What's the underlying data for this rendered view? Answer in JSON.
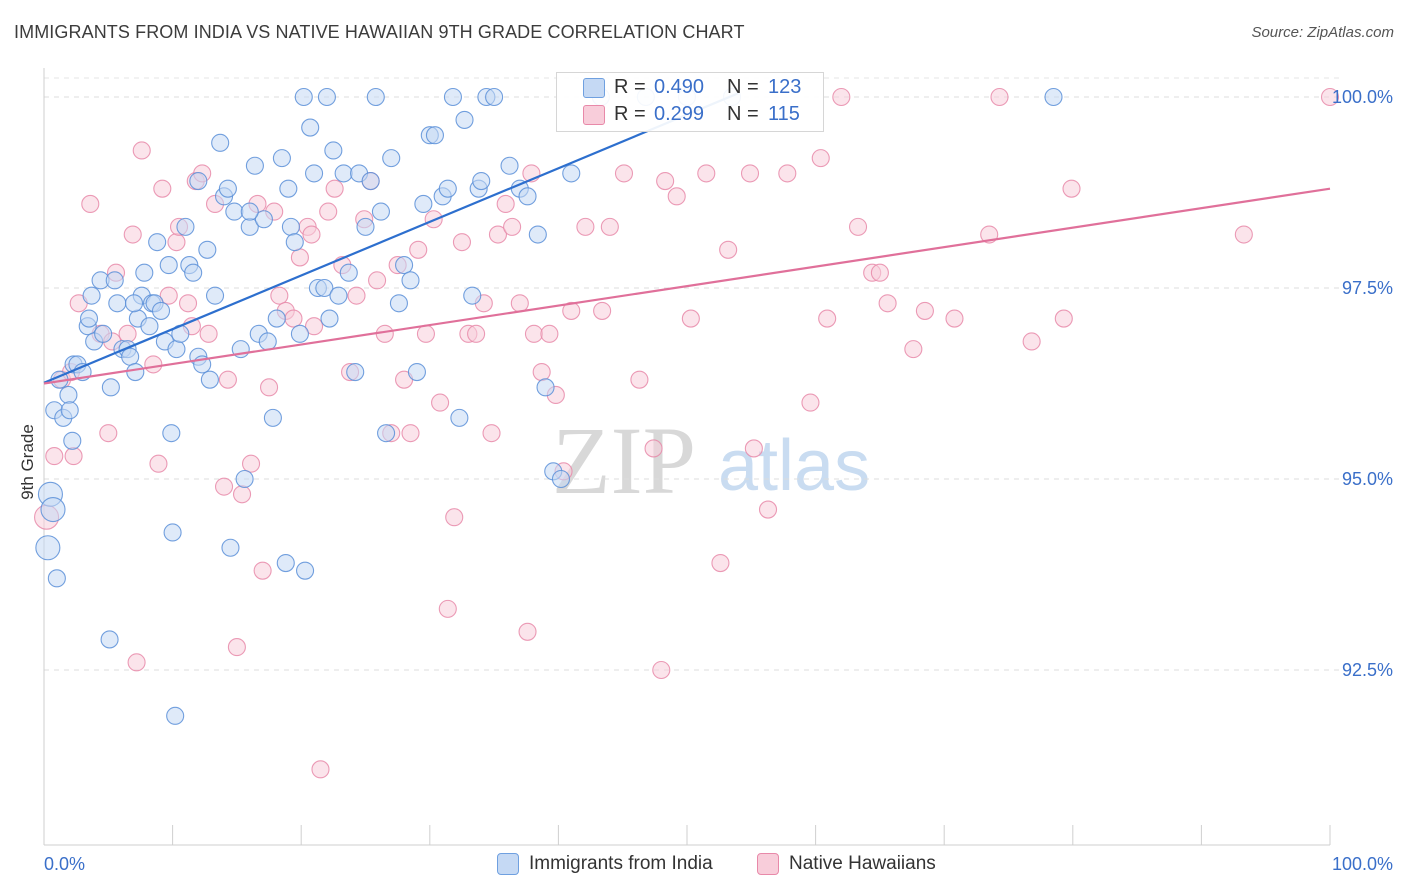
{
  "header": {
    "title": "IMMIGRANTS FROM INDIA VS NATIVE HAWAIIAN 9TH GRADE CORRELATION CHART",
    "source": "Source: ZipAtlas.com"
  },
  "watermark": {
    "zip": "ZIP",
    "atlas": "atlas"
  },
  "legend_top": {
    "rows": [
      {
        "r_label": "R =",
        "r_value": "0.490",
        "n_label": "N =",
        "n_value": "123",
        "color": "#6fa0e0",
        "fill": "#c5d9f4"
      },
      {
        "r_label": "R =",
        "r_value": "0.299",
        "n_label": "N =",
        "n_value": "115",
        "color": "#e889a9",
        "fill": "#f8cdda"
      }
    ]
  },
  "legend_bottom": {
    "items": [
      {
        "label": "Immigrants from India",
        "color": "#6fa0e0",
        "fill": "#c5d9f4"
      },
      {
        "label": "Native Hawaiians",
        "color": "#e889a9",
        "fill": "#f8cdda"
      }
    ]
  },
  "chart_data": {
    "type": "scatter",
    "title": "IMMIGRANTS FROM INDIA VS NATIVE HAWAIIAN 9TH GRADE CORRELATION CHART",
    "xlabel": "",
    "ylabel": "9th Grade",
    "xlim": [
      0,
      100
    ],
    "ylim": [
      90.6,
      100.4
    ],
    "x_tick_labels": [
      "0.0%",
      "100.0%"
    ],
    "y_ticks": [
      92.5,
      95.0,
      97.5,
      100.0
    ],
    "y_tick_labels": [
      "92.5%",
      "95.0%",
      "97.5%",
      "100.0%"
    ],
    "grid": "horizontal dashed",
    "legend_position": "top-center",
    "series": [
      {
        "name": "Immigrants from India",
        "color": "#5b8fd8",
        "fill": "#c5d9f4",
        "trend": {
          "x": [
            0,
            54
          ],
          "y": [
            96.26,
            100.05
          ]
        },
        "points": [
          [
            0.3,
            94.1
          ],
          [
            0.5,
            94.8
          ],
          [
            0.7,
            94.6
          ],
          [
            1.0,
            93.7
          ],
          [
            0.8,
            95.9
          ],
          [
            1.5,
            95.8
          ],
          [
            1.2,
            96.3
          ],
          [
            1.9,
            96.1
          ],
          [
            2.0,
            95.9
          ],
          [
            2.2,
            95.5
          ],
          [
            2.3,
            96.5
          ],
          [
            2.6,
            96.5
          ],
          [
            3.0,
            96.4
          ],
          [
            3.4,
            97.0
          ],
          [
            3.5,
            97.1
          ],
          [
            3.7,
            97.4
          ],
          [
            3.9,
            96.8
          ],
          [
            4.4,
            97.6
          ],
          [
            4.6,
            96.9
          ],
          [
            5.2,
            96.2
          ],
          [
            5.5,
            97.6
          ],
          [
            5.7,
            97.3
          ],
          [
            6.1,
            96.7
          ],
          [
            6.5,
            96.7
          ],
          [
            6.7,
            96.6
          ],
          [
            7.1,
            96.4
          ],
          [
            7.3,
            97.1
          ],
          [
            7.6,
            97.4
          ],
          [
            7.8,
            97.7
          ],
          [
            8.2,
            97.0
          ],
          [
            8.4,
            97.3
          ],
          [
            8.6,
            97.3
          ],
          [
            8.8,
            98.1
          ],
          [
            9.1,
            97.2
          ],
          [
            9.4,
            96.8
          ],
          [
            9.7,
            97.8
          ],
          [
            10.0,
            94.3
          ],
          [
            10.3,
            96.7
          ],
          [
            10.6,
            96.9
          ],
          [
            11.0,
            98.3
          ],
          [
            11.3,
            97.8
          ],
          [
            11.6,
            97.7
          ],
          [
            12.0,
            96.6
          ],
          [
            12.3,
            96.5
          ],
          [
            12.7,
            98.0
          ],
          [
            12.9,
            96.3
          ],
          [
            13.3,
            97.4
          ],
          [
            13.7,
            99.4
          ],
          [
            14.0,
            98.7
          ],
          [
            14.3,
            98.8
          ],
          [
            14.5,
            94.1
          ],
          [
            14.8,
            98.5
          ],
          [
            15.3,
            96.7
          ],
          [
            15.6,
            95.0
          ],
          [
            16.0,
            98.3
          ],
          [
            16.4,
            99.1
          ],
          [
            16.7,
            96.9
          ],
          [
            17.1,
            98.4
          ],
          [
            17.4,
            96.8
          ],
          [
            17.8,
            95.8
          ],
          [
            18.1,
            97.1
          ],
          [
            18.5,
            99.2
          ],
          [
            18.8,
            93.9
          ],
          [
            19.2,
            98.3
          ],
          [
            19.5,
            98.1
          ],
          [
            19.9,
            96.9
          ],
          [
            20.3,
            93.8
          ],
          [
            20.7,
            99.6
          ],
          [
            21.0,
            99.0
          ],
          [
            21.3,
            97.5
          ],
          [
            21.8,
            97.5
          ],
          [
            22.2,
            97.1
          ],
          [
            22.5,
            99.3
          ],
          [
            22.9,
            97.4
          ],
          [
            23.3,
            99.0
          ],
          [
            23.7,
            97.7
          ],
          [
            24.2,
            96.4
          ],
          [
            24.5,
            99.0
          ],
          [
            25.0,
            98.3
          ],
          [
            25.4,
            98.9
          ],
          [
            25.8,
            100.0
          ],
          [
            26.2,
            98.5
          ],
          [
            26.6,
            95.6
          ],
          [
            27.0,
            99.2
          ],
          [
            27.6,
            97.3
          ],
          [
            28.0,
            97.8
          ],
          [
            28.5,
            97.6
          ],
          [
            29.0,
            96.4
          ],
          [
            29.5,
            98.6
          ],
          [
            30.0,
            99.5
          ],
          [
            30.4,
            99.5
          ],
          [
            31.0,
            98.7
          ],
          [
            31.4,
            98.8
          ],
          [
            31.8,
            100.0
          ],
          [
            32.3,
            95.8
          ],
          [
            32.7,
            99.7
          ],
          [
            33.3,
            97.4
          ],
          [
            33.8,
            98.8
          ],
          [
            34.4,
            100.0
          ],
          [
            35.0,
            100.0
          ],
          [
            36.2,
            99.1
          ],
          [
            37.0,
            98.8
          ],
          [
            37.6,
            98.7
          ],
          [
            38.4,
            98.2
          ],
          [
            39.0,
            96.2
          ],
          [
            39.6,
            95.1
          ],
          [
            40.2,
            95.0
          ],
          [
            41.0,
            99.0
          ],
          [
            43.3,
            100.0
          ],
          [
            46.8,
            100.0
          ],
          [
            50.0,
            100.0
          ],
          [
            53.5,
            100.0
          ],
          [
            78.5,
            100.0
          ],
          [
            16.0,
            98.5
          ],
          [
            5.1,
            92.9
          ],
          [
            10.2,
            91.9
          ],
          [
            9.9,
            95.6
          ],
          [
            12.0,
            98.9
          ],
          [
            19.0,
            98.8
          ],
          [
            20.2,
            100.0
          ],
          [
            22.0,
            100.0
          ],
          [
            34.0,
            98.9
          ],
          [
            7.0,
            97.3
          ]
        ]
      },
      {
        "name": "Native Hawaiians",
        "color": "#e889a9",
        "fill": "#f8cdda",
        "trend": {
          "x": [
            0,
            100
          ],
          "y": [
            96.25,
            98.8
          ]
        },
        "points": [
          [
            0.2,
            94.5
          ],
          [
            0.8,
            95.3
          ],
          [
            1.4,
            96.3
          ],
          [
            2.1,
            96.4
          ],
          [
            2.3,
            95.3
          ],
          [
            2.7,
            97.3
          ],
          [
            3.6,
            98.6
          ],
          [
            4.4,
            96.9
          ],
          [
            5.0,
            95.6
          ],
          [
            5.3,
            96.8
          ],
          [
            5.6,
            97.7
          ],
          [
            6.5,
            96.9
          ],
          [
            6.9,
            98.2
          ],
          [
            7.2,
            92.6
          ],
          [
            8.5,
            96.5
          ],
          [
            8.9,
            95.2
          ],
          [
            9.2,
            98.8
          ],
          [
            9.7,
            97.4
          ],
          [
            10.3,
            98.1
          ],
          [
            10.5,
            98.3
          ],
          [
            11.2,
            97.3
          ],
          [
            11.5,
            97.0
          ],
          [
            11.8,
            98.9
          ],
          [
            12.3,
            99.0
          ],
          [
            12.8,
            96.9
          ],
          [
            13.3,
            98.6
          ],
          [
            14.0,
            94.9
          ],
          [
            14.3,
            96.3
          ],
          [
            15.0,
            92.8
          ],
          [
            15.4,
            94.8
          ],
          [
            16.1,
            95.2
          ],
          [
            16.6,
            98.6
          ],
          [
            17.0,
            93.8
          ],
          [
            17.5,
            96.2
          ],
          [
            17.9,
            98.5
          ],
          [
            18.3,
            97.4
          ],
          [
            18.8,
            97.2
          ],
          [
            19.4,
            97.1
          ],
          [
            19.9,
            97.9
          ],
          [
            20.5,
            98.3
          ],
          [
            21.0,
            97.0
          ],
          [
            21.5,
            91.2
          ],
          [
            22.1,
            98.5
          ],
          [
            22.6,
            98.8
          ],
          [
            23.2,
            97.8
          ],
          [
            23.8,
            96.4
          ],
          [
            24.3,
            97.4
          ],
          [
            24.9,
            98.4
          ],
          [
            25.4,
            98.9
          ],
          [
            25.9,
            97.6
          ],
          [
            26.5,
            96.9
          ],
          [
            27.0,
            95.6
          ],
          [
            27.5,
            97.8
          ],
          [
            28.0,
            96.3
          ],
          [
            28.5,
            95.6
          ],
          [
            29.1,
            98.0
          ],
          [
            29.7,
            96.9
          ],
          [
            30.3,
            98.4
          ],
          [
            30.8,
            96.0
          ],
          [
            31.4,
            93.3
          ],
          [
            31.9,
            94.5
          ],
          [
            32.5,
            98.1
          ],
          [
            33.0,
            96.9
          ],
          [
            33.6,
            96.9
          ],
          [
            34.2,
            97.3
          ],
          [
            34.8,
            95.6
          ],
          [
            35.3,
            98.2
          ],
          [
            35.9,
            98.6
          ],
          [
            36.4,
            98.3
          ],
          [
            37.0,
            97.3
          ],
          [
            37.6,
            93.0
          ],
          [
            38.1,
            96.9
          ],
          [
            38.7,
            96.4
          ],
          [
            39.3,
            96.9
          ],
          [
            39.8,
            96.1
          ],
          [
            40.4,
            95.1
          ],
          [
            41.0,
            97.2
          ],
          [
            42.1,
            98.3
          ],
          [
            43.4,
            97.2
          ],
          [
            44.0,
            98.3
          ],
          [
            45.1,
            99.0
          ],
          [
            46.3,
            96.3
          ],
          [
            47.4,
            95.4
          ],
          [
            48.0,
            92.5
          ],
          [
            49.2,
            98.7
          ],
          [
            50.3,
            97.1
          ],
          [
            51.5,
            99.0
          ],
          [
            52.6,
            93.9
          ],
          [
            53.2,
            98.0
          ],
          [
            55.2,
            95.4
          ],
          [
            56.3,
            94.6
          ],
          [
            57.8,
            99.0
          ],
          [
            59.6,
            96.0
          ],
          [
            60.9,
            97.1
          ],
          [
            62.0,
            100.0
          ],
          [
            63.3,
            98.3
          ],
          [
            64.4,
            97.7
          ],
          [
            65.0,
            97.7
          ],
          [
            65.6,
            97.3
          ],
          [
            67.6,
            96.7
          ],
          [
            68.5,
            97.2
          ],
          [
            70.8,
            97.1
          ],
          [
            73.5,
            98.2
          ],
          [
            74.3,
            100.0
          ],
          [
            76.8,
            96.8
          ],
          [
            79.3,
            97.1
          ],
          [
            79.9,
            98.8
          ],
          [
            93.3,
            98.2
          ],
          [
            100.0,
            100.0
          ],
          [
            37.9,
            99.0
          ],
          [
            48.3,
            98.9
          ],
          [
            54.9,
            99.0
          ],
          [
            60.4,
            99.2
          ],
          [
            20.8,
            98.2
          ],
          [
            7.6,
            99.3
          ]
        ]
      }
    ]
  }
}
